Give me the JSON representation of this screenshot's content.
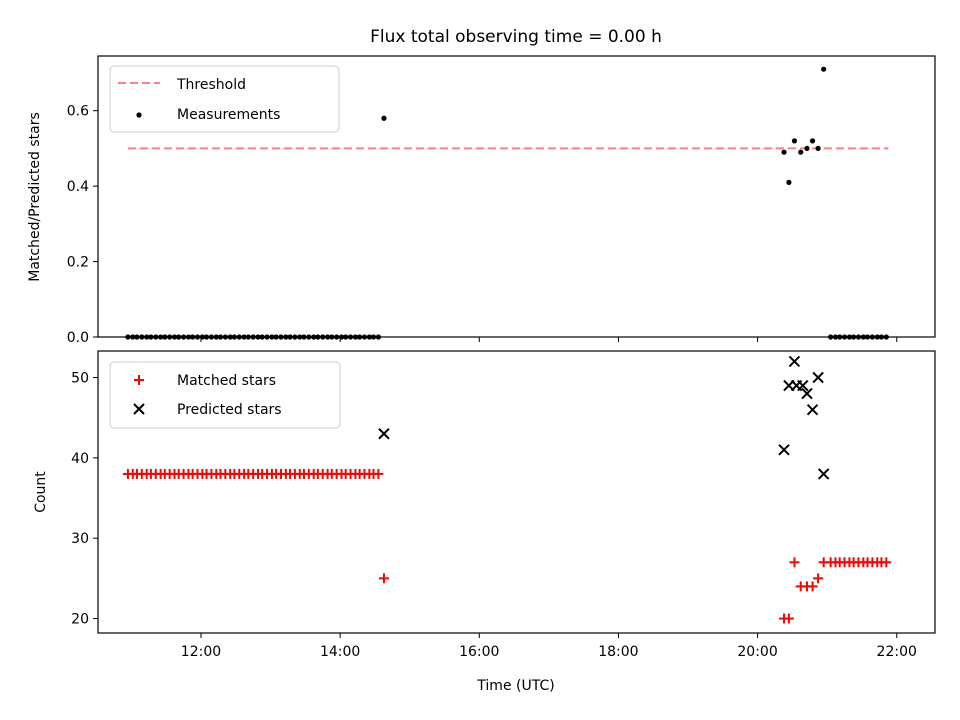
{
  "chart_data": [
    {
      "type": "scatter",
      "title": "Flux total observing time = 0.00 h",
      "xlabel": "",
      "ylabel": "Matched/Predicted stars",
      "xlim": [
        10.52,
        22.55
      ],
      "ylim": [
        0.0,
        0.745
      ],
      "yticks": [
        0.0,
        0.2,
        0.4,
        0.6
      ],
      "yticklabels": [
        "0.0",
        "0.2",
        "0.4",
        "0.6"
      ],
      "legend": {
        "position": "top-left",
        "entries": [
          "Threshold",
          "Measurements"
        ]
      },
      "threshold": {
        "name": "Threshold",
        "value": 0.5,
        "x_start": 10.95,
        "x_end": 21.88,
        "color": "#ff7f7f"
      },
      "series": [
        {
          "name": "Measurements",
          "color": "#000000",
          "marker": "dot",
          "points": [
            [
              10.95,
              0
            ],
            [
              11.02,
              0
            ],
            [
              11.08,
              0
            ],
            [
              11.15,
              0
            ],
            [
              11.22,
              0
            ],
            [
              11.28,
              0
            ],
            [
              11.35,
              0
            ],
            [
              11.42,
              0
            ],
            [
              11.48,
              0
            ],
            [
              11.55,
              0
            ],
            [
              11.62,
              0
            ],
            [
              11.68,
              0
            ],
            [
              11.75,
              0
            ],
            [
              11.82,
              0
            ],
            [
              11.88,
              0
            ],
            [
              11.95,
              0
            ],
            [
              12.02,
              0
            ],
            [
              12.08,
              0
            ],
            [
              12.15,
              0
            ],
            [
              12.22,
              0
            ],
            [
              12.28,
              0
            ],
            [
              12.35,
              0
            ],
            [
              12.42,
              0
            ],
            [
              12.48,
              0
            ],
            [
              12.55,
              0
            ],
            [
              12.62,
              0
            ],
            [
              12.68,
              0
            ],
            [
              12.75,
              0
            ],
            [
              12.82,
              0
            ],
            [
              12.88,
              0
            ],
            [
              12.95,
              0
            ],
            [
              13.02,
              0
            ],
            [
              13.08,
              0
            ],
            [
              13.15,
              0
            ],
            [
              13.22,
              0
            ],
            [
              13.28,
              0
            ],
            [
              13.35,
              0
            ],
            [
              13.42,
              0
            ],
            [
              13.48,
              0
            ],
            [
              13.55,
              0
            ],
            [
              13.62,
              0
            ],
            [
              13.68,
              0
            ],
            [
              13.75,
              0
            ],
            [
              13.82,
              0
            ],
            [
              13.88,
              0
            ],
            [
              13.95,
              0
            ],
            [
              14.02,
              0
            ],
            [
              14.08,
              0
            ],
            [
              14.15,
              0
            ],
            [
              14.22,
              0
            ],
            [
              14.28,
              0
            ],
            [
              14.35,
              0
            ],
            [
              14.42,
              0
            ],
            [
              14.48,
              0
            ],
            [
              14.55,
              0
            ],
            [
              14.63,
              0.58
            ],
            [
              20.38,
              0.49
            ],
            [
              20.45,
              0.41
            ],
            [
              20.53,
              0.52
            ],
            [
              20.62,
              0.49
            ],
            [
              20.71,
              0.5
            ],
            [
              20.79,
              0.52
            ],
            [
              20.87,
              0.5
            ],
            [
              20.95,
              0.71
            ],
            [
              21.05,
              0
            ],
            [
              21.12,
              0
            ],
            [
              21.18,
              0
            ],
            [
              21.25,
              0
            ],
            [
              21.32,
              0
            ],
            [
              21.38,
              0
            ],
            [
              21.45,
              0
            ],
            [
              21.52,
              0
            ],
            [
              21.58,
              0
            ],
            [
              21.65,
              0
            ],
            [
              21.72,
              0
            ],
            [
              21.78,
              0
            ],
            [
              21.85,
              0
            ]
          ]
        }
      ]
    },
    {
      "type": "scatter",
      "title": "",
      "xlabel": "Time (UTC)",
      "ylabel": "Count",
      "xlim": [
        10.52,
        22.55
      ],
      "ylim": [
        18.2,
        53.3
      ],
      "yticks": [
        20,
        30,
        40,
        50
      ],
      "yticklabels": [
        "20",
        "30",
        "40",
        "50"
      ],
      "xticks": [
        12,
        14,
        16,
        18,
        20,
        22
      ],
      "xticklabels": [
        "12:00",
        "14:00",
        "16:00",
        "18:00",
        "20:00",
        "22:00"
      ],
      "legend": {
        "position": "top-left",
        "entries": [
          "Matched stars",
          "Predicted stars"
        ]
      },
      "series": [
        {
          "name": "Matched stars",
          "color": "#ff0000",
          "marker": "plus",
          "points": [
            [
              10.95,
              38
            ],
            [
              11.02,
              38
            ],
            [
              11.08,
              38
            ],
            [
              11.15,
              38
            ],
            [
              11.22,
              38
            ],
            [
              11.28,
              38
            ],
            [
              11.35,
              38
            ],
            [
              11.42,
              38
            ],
            [
              11.48,
              38
            ],
            [
              11.55,
              38
            ],
            [
              11.62,
              38
            ],
            [
              11.68,
              38
            ],
            [
              11.75,
              38
            ],
            [
              11.82,
              38
            ],
            [
              11.88,
              38
            ],
            [
              11.95,
              38
            ],
            [
              12.02,
              38
            ],
            [
              12.08,
              38
            ],
            [
              12.15,
              38
            ],
            [
              12.22,
              38
            ],
            [
              12.28,
              38
            ],
            [
              12.35,
              38
            ],
            [
              12.42,
              38
            ],
            [
              12.48,
              38
            ],
            [
              12.55,
              38
            ],
            [
              12.62,
              38
            ],
            [
              12.68,
              38
            ],
            [
              12.75,
              38
            ],
            [
              12.82,
              38
            ],
            [
              12.88,
              38
            ],
            [
              12.95,
              38
            ],
            [
              13.02,
              38
            ],
            [
              13.08,
              38
            ],
            [
              13.15,
              38
            ],
            [
              13.22,
              38
            ],
            [
              13.28,
              38
            ],
            [
              13.35,
              38
            ],
            [
              13.42,
              38
            ],
            [
              13.48,
              38
            ],
            [
              13.55,
              38
            ],
            [
              13.62,
              38
            ],
            [
              13.68,
              38
            ],
            [
              13.75,
              38
            ],
            [
              13.82,
              38
            ],
            [
              13.88,
              38
            ],
            [
              13.95,
              38
            ],
            [
              14.02,
              38
            ],
            [
              14.08,
              38
            ],
            [
              14.15,
              38
            ],
            [
              14.22,
              38
            ],
            [
              14.28,
              38
            ],
            [
              14.35,
              38
            ],
            [
              14.42,
              38
            ],
            [
              14.48,
              38
            ],
            [
              14.55,
              38
            ],
            [
              14.63,
              25
            ],
            [
              20.38,
              20
            ],
            [
              20.45,
              20
            ],
            [
              20.53,
              27
            ],
            [
              20.62,
              24
            ],
            [
              20.71,
              24
            ],
            [
              20.79,
              24
            ],
            [
              20.87,
              25
            ],
            [
              20.95,
              27
            ],
            [
              21.05,
              27
            ],
            [
              21.12,
              27
            ],
            [
              21.18,
              27
            ],
            [
              21.25,
              27
            ],
            [
              21.32,
              27
            ],
            [
              21.38,
              27
            ],
            [
              21.45,
              27
            ],
            [
              21.52,
              27
            ],
            [
              21.58,
              27
            ],
            [
              21.65,
              27
            ],
            [
              21.72,
              27
            ],
            [
              21.78,
              27
            ],
            [
              21.85,
              27
            ]
          ]
        },
        {
          "name": "Predicted stars",
          "color": "#000000",
          "marker": "x",
          "points": [
            [
              14.63,
              43
            ],
            [
              20.38,
              41
            ],
            [
              20.45,
              49
            ],
            [
              20.53,
              52
            ],
            [
              20.56,
              49
            ],
            [
              20.65,
              49
            ],
            [
              20.71,
              48
            ],
            [
              20.79,
              46
            ],
            [
              20.87,
              50
            ],
            [
              20.95,
              38
            ]
          ]
        }
      ]
    }
  ]
}
